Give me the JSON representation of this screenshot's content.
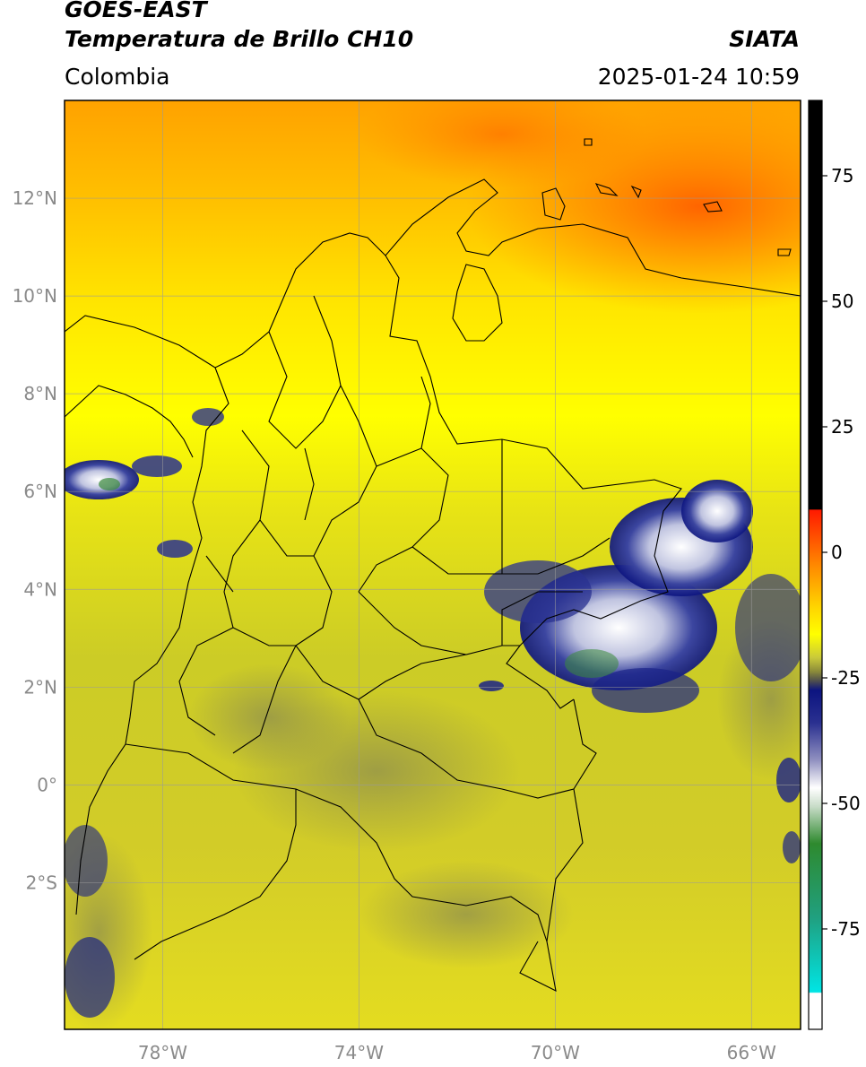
{
  "header": {
    "satellite": "GOES-EAST",
    "product": "Temperatura de Brillo CH10",
    "region": "Colombia",
    "organization": "SIATA",
    "datetime": "2025-01-24 10:59"
  },
  "map": {
    "lon_range": [
      -80,
      -65
    ],
    "lat_range": [
      -5,
      14
    ],
    "lat_ticks": [
      {
        "value": 12,
        "label": "12°N"
      },
      {
        "value": 10,
        "label": "10°N"
      },
      {
        "value": 8,
        "label": "8°N"
      },
      {
        "value": 6,
        "label": "6°N"
      },
      {
        "value": 4,
        "label": "4°N"
      },
      {
        "value": 2,
        "label": "2°N"
      },
      {
        "value": 0,
        "label": "0°"
      },
      {
        "value": -2,
        "label": "2°S"
      }
    ],
    "lon_ticks": [
      {
        "value": -78,
        "label": "78°W"
      },
      {
        "value": -74,
        "label": "74°W"
      },
      {
        "value": -70,
        "label": "70°W"
      },
      {
        "value": -66,
        "label": "66°W"
      }
    ],
    "grid": true
  },
  "colorbar": {
    "range": [
      -95,
      90
    ],
    "ticks": [
      {
        "value": 75,
        "label": "75"
      },
      {
        "value": 50,
        "label": "50"
      },
      {
        "value": 25,
        "label": "25"
      },
      {
        "value": 0,
        "label": "0"
      },
      {
        "value": -25,
        "label": "-25"
      },
      {
        "value": -50,
        "label": "-50"
      },
      {
        "value": -75,
        "label": "-75"
      }
    ],
    "colors": {
      "black": "#000000",
      "red": "#ff1a00",
      "orange": "#ff9400",
      "yellow": "#ffff00",
      "olive": "#b8b830",
      "gray": "#555550",
      "navy": "#0c1480",
      "white": "#ffffff",
      "green": "#2e8a2e",
      "cyan": "#00e5e5"
    }
  }
}
